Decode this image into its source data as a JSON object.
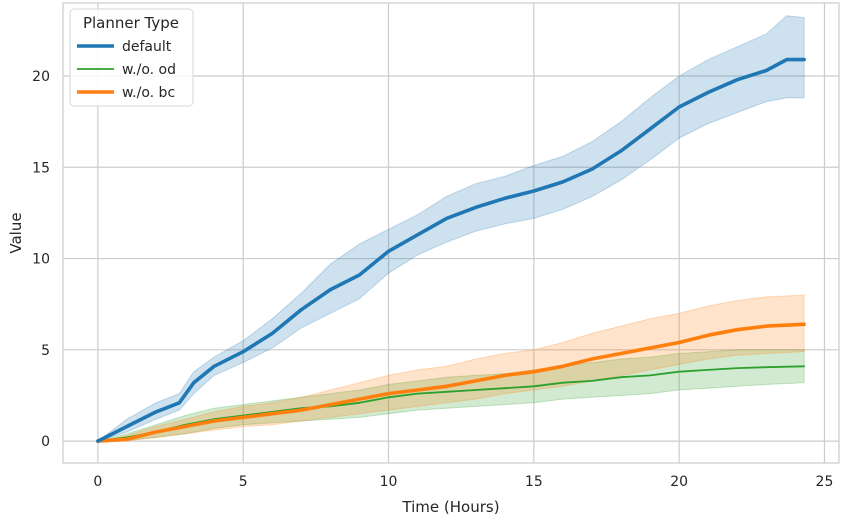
{
  "chart_data": {
    "type": "line",
    "title": "",
    "xlabel": "Time (Hours)",
    "ylabel": "Value",
    "xlim": [
      -1.2,
      25.5
    ],
    "ylim": [
      -1.2,
      24.0
    ],
    "xticks": [
      0,
      5,
      10,
      15,
      20,
      25
    ],
    "yticks": [
      0,
      5,
      10,
      15,
      20
    ],
    "grid": true,
    "legend": {
      "title": "Planner Type",
      "position": "top-left"
    },
    "series": [
      {
        "name": "default",
        "color": "#1f77b4",
        "line_weight": "thick",
        "x": [
          0,
          1,
          2,
          2.8,
          3.3,
          4,
          5,
          6,
          7,
          8,
          9,
          10,
          11,
          12,
          13,
          14,
          15,
          16,
          17,
          18,
          19,
          20,
          21,
          22,
          23,
          23.7,
          24.3
        ],
        "y": [
          0,
          0.8,
          1.6,
          2.1,
          3.2,
          4.1,
          4.9,
          5.9,
          7.2,
          8.3,
          9.1,
          10.4,
          11.3,
          12.2,
          12.8,
          13.3,
          13.7,
          14.2,
          14.9,
          15.9,
          17.1,
          18.3,
          19.1,
          19.8,
          20.3,
          20.9,
          20.9
        ],
        "lower": [
          0,
          0.5,
          1.2,
          1.7,
          2.6,
          3.6,
          4.3,
          5.1,
          6.2,
          7.0,
          7.8,
          9.2,
          10.2,
          10.9,
          11.5,
          11.9,
          12.2,
          12.7,
          13.4,
          14.3,
          15.4,
          16.6,
          17.4,
          18.0,
          18.6,
          18.8,
          18.8
        ],
        "upper": [
          0,
          1.2,
          2.1,
          2.6,
          3.8,
          4.6,
          5.5,
          6.7,
          8.1,
          9.7,
          10.8,
          11.6,
          12.4,
          13.4,
          14.1,
          14.5,
          15.1,
          15.6,
          16.4,
          17.5,
          18.8,
          20.0,
          20.9,
          21.6,
          22.3,
          23.3,
          23.2
        ]
      },
      {
        "name": "w./o. od",
        "color": "#2ca02c",
        "line_weight": "thin",
        "x": [
          0,
          1,
          2,
          3,
          4,
          5,
          6,
          7,
          8,
          9,
          10,
          11,
          12,
          13,
          14,
          15,
          16,
          17,
          18,
          19,
          20,
          21,
          22,
          23,
          24.3
        ],
        "y": [
          0,
          0.2,
          0.5,
          0.9,
          1.2,
          1.4,
          1.6,
          1.8,
          1.9,
          2.1,
          2.4,
          2.6,
          2.7,
          2.8,
          2.9,
          3.0,
          3.2,
          3.3,
          3.5,
          3.6,
          3.8,
          3.9,
          4.0,
          4.05,
          4.1
        ],
        "lower": [
          0,
          0.05,
          0.2,
          0.4,
          0.7,
          0.9,
          1.0,
          1.1,
          1.2,
          1.3,
          1.5,
          1.7,
          1.8,
          1.9,
          2.0,
          2.1,
          2.3,
          2.4,
          2.5,
          2.6,
          2.8,
          2.9,
          3.0,
          3.1,
          3.2
        ],
        "upper": [
          0,
          0.4,
          0.9,
          1.4,
          1.8,
          2.0,
          2.2,
          2.4,
          2.6,
          2.8,
          3.1,
          3.3,
          3.5,
          3.6,
          3.7,
          3.9,
          4.1,
          4.3,
          4.5,
          4.6,
          4.8,
          4.9,
          5.0,
          5.0,
          5.0
        ]
      },
      {
        "name": "w./o. bc",
        "color": "#ff7f0e",
        "line_weight": "thick",
        "x": [
          0,
          1,
          2,
          3,
          4,
          5,
          6,
          7,
          8,
          9,
          10,
          11,
          12,
          13,
          14,
          15,
          16,
          17,
          18,
          19,
          20,
          21,
          22,
          23,
          24.3
        ],
        "y": [
          0,
          0.1,
          0.5,
          0.8,
          1.1,
          1.3,
          1.5,
          1.7,
          2.0,
          2.3,
          2.6,
          2.8,
          3.0,
          3.3,
          3.6,
          3.8,
          4.1,
          4.5,
          4.8,
          5.1,
          5.4,
          5.8,
          6.1,
          6.3,
          6.4
        ],
        "lower": [
          0,
          0.0,
          0.2,
          0.4,
          0.6,
          0.8,
          0.9,
          1.1,
          1.3,
          1.5,
          1.7,
          1.9,
          2.1,
          2.3,
          2.6,
          2.8,
          3.0,
          3.3,
          3.6,
          3.9,
          4.2,
          4.5,
          4.7,
          4.8,
          4.9
        ],
        "upper": [
          0,
          0.3,
          0.8,
          1.2,
          1.6,
          1.9,
          2.1,
          2.4,
          2.8,
          3.2,
          3.6,
          3.9,
          4.1,
          4.5,
          4.8,
          5.0,
          5.4,
          5.9,
          6.3,
          6.7,
          7.0,
          7.4,
          7.7,
          7.9,
          8.0
        ]
      }
    ]
  }
}
